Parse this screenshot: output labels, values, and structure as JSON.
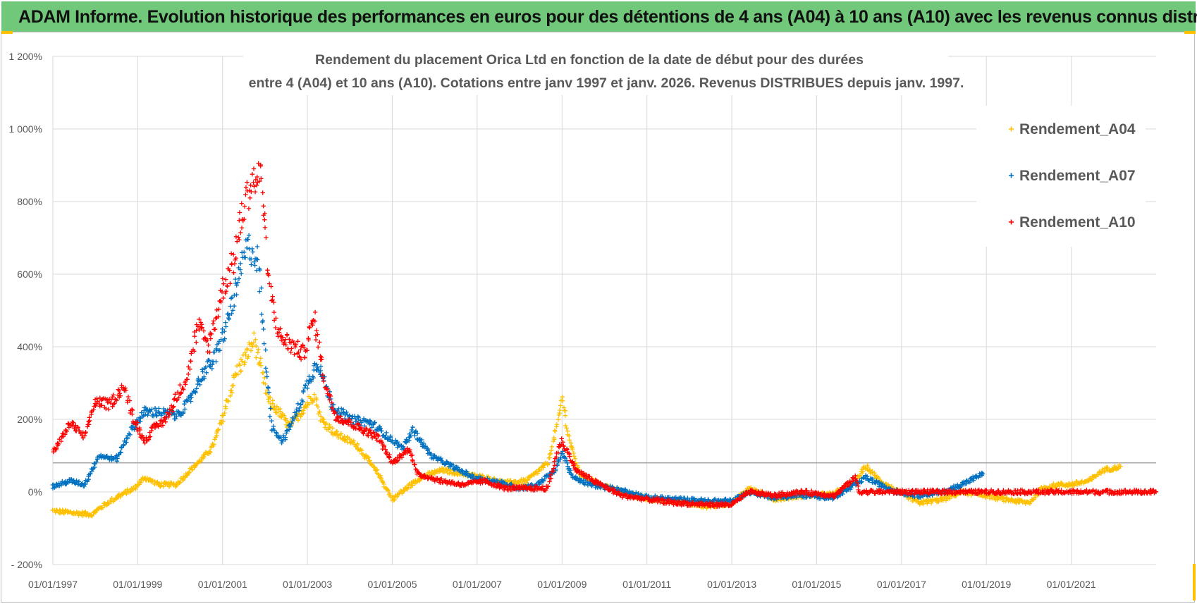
{
  "banner": {
    "title": "ADAM Informe. Evolution historique des performances en euros pour des détentions de 4 ans (A04) à 10 ans (A10) avec les revenus connus distribués"
  },
  "chart_data": {
    "type": "scatter",
    "title": "Rendement du placement Orica Ltd en fonction de la date de début pour des durées",
    "subtitle": "entre 4 (A04) et 10 ans (A10). Cotations entre janv 1997 et janv. 2026. Revenus DISTRIBUES depuis janv. 1997.",
    "xlabel": "",
    "ylabel": "",
    "x_range": [
      "1997-01-01",
      "2023-01-01"
    ],
    "ylim": [
      -200,
      1200
    ],
    "y_ticks": [
      -200,
      0,
      200,
      400,
      600,
      800,
      1000,
      1200
    ],
    "y_tick_labels": [
      "- 200%",
      "0%",
      "200%",
      "400%",
      "600%",
      "800%",
      "1 000%",
      "1 200%"
    ],
    "x_tick_labels": [
      "01/01/1997",
      "01/01/1999",
      "01/01/2001",
      "01/01/2003",
      "01/01/2005",
      "01/01/2007",
      "01/01/2009",
      "01/01/2011",
      "01/01/2013",
      "01/01/2015",
      "01/01/2017",
      "01/01/2019",
      "01/01/2021"
    ],
    "grid": true,
    "reference_line_y": 80,
    "legend_position": "top-right",
    "marker": "+",
    "series": [
      {
        "name": "Rendement_A04",
        "color": "#ffc000",
        "points": [
          [
            "1997-01-01",
            -52
          ],
          [
            "1997-07-01",
            -58
          ],
          [
            "1997-12-01",
            -62
          ],
          [
            "1998-03-01",
            -40
          ],
          [
            "1998-07-01",
            -15
          ],
          [
            "1998-12-01",
            10
          ],
          [
            "1999-03-01",
            40
          ],
          [
            "1999-07-01",
            20
          ],
          [
            "1999-12-01",
            20
          ],
          [
            "2000-03-01",
            50
          ],
          [
            "2000-07-01",
            90
          ],
          [
            "2000-10-01",
            120
          ],
          [
            "2001-01-01",
            200
          ],
          [
            "2001-03-01",
            270
          ],
          [
            "2001-05-01",
            330
          ],
          [
            "2001-08-01",
            380
          ],
          [
            "2001-10-01",
            420
          ],
          [
            "2001-12-01",
            330
          ],
          [
            "2002-02-01",
            250
          ],
          [
            "2002-05-01",
            220
          ],
          [
            "2002-08-01",
            180
          ],
          [
            "2002-12-01",
            230
          ],
          [
            "2003-03-01",
            270
          ],
          [
            "2003-05-01",
            200
          ],
          [
            "2003-09-01",
            160
          ],
          [
            "2004-03-01",
            130
          ],
          [
            "2004-09-01",
            50
          ],
          [
            "2005-01-01",
            -20
          ],
          [
            "2005-05-01",
            10
          ],
          [
            "2005-09-01",
            40
          ],
          [
            "2006-03-01",
            60
          ],
          [
            "2006-09-01",
            50
          ],
          [
            "2007-03-01",
            40
          ],
          [
            "2007-09-01",
            25
          ],
          [
            "2008-03-01",
            30
          ],
          [
            "2008-09-01",
            80
          ],
          [
            "2008-12-01",
            200
          ],
          [
            "2009-01-01",
            260
          ],
          [
            "2009-03-01",
            150
          ],
          [
            "2009-06-01",
            50
          ],
          [
            "2009-12-01",
            20
          ],
          [
            "2010-06-01",
            0
          ],
          [
            "2011-01-01",
            -20
          ],
          [
            "2011-09-01",
            -25
          ],
          [
            "2012-06-01",
            -40
          ],
          [
            "2013-01-01",
            -30
          ],
          [
            "2013-06-01",
            10
          ],
          [
            "2014-01-01",
            -20
          ],
          [
            "2014-09-01",
            -10
          ],
          [
            "2015-06-01",
            -5
          ],
          [
            "2015-12-01",
            30
          ],
          [
            "2016-03-01",
            70
          ],
          [
            "2016-07-01",
            30
          ],
          [
            "2016-12-01",
            0
          ],
          [
            "2017-06-01",
            -30
          ],
          [
            "2018-01-01",
            -20
          ],
          [
            "2018-06-01",
            0
          ],
          [
            "2019-01-01",
            -10
          ],
          [
            "2019-06-01",
            -20
          ],
          [
            "2020-01-01",
            -30
          ],
          [
            "2020-05-01",
            10
          ],
          [
            "2020-09-01",
            20
          ],
          [
            "2021-01-01",
            20
          ],
          [
            "2021-06-01",
            30
          ],
          [
            "2021-10-01",
            60
          ],
          [
            "2022-03-01",
            70
          ]
        ]
      },
      {
        "name": "Rendement_A07",
        "color": "#0070c0",
        "points": [
          [
            "1997-01-01",
            15
          ],
          [
            "1997-06-01",
            30
          ],
          [
            "1997-10-01",
            20
          ],
          [
            "1998-02-01",
            100
          ],
          [
            "1998-07-01",
            90
          ],
          [
            "1998-11-01",
            170
          ],
          [
            "1999-03-01",
            220
          ],
          [
            "1999-07-01",
            220
          ],
          [
            "1999-12-01",
            210
          ],
          [
            "2000-03-01",
            240
          ],
          [
            "2000-07-01",
            320
          ],
          [
            "2000-11-01",
            370
          ],
          [
            "2001-02-01",
            460
          ],
          [
            "2001-05-01",
            560
          ],
          [
            "2001-08-01",
            680
          ],
          [
            "2001-11-01",
            640
          ],
          [
            "2002-01-01",
            380
          ],
          [
            "2002-03-01",
            180
          ],
          [
            "2002-06-01",
            140
          ],
          [
            "2002-10-01",
            220
          ],
          [
            "2003-01-01",
            300
          ],
          [
            "2003-04-01",
            360
          ],
          [
            "2003-08-01",
            240
          ],
          [
            "2004-01-01",
            200
          ],
          [
            "2004-07-01",
            190
          ],
          [
            "2004-12-01",
            150
          ],
          [
            "2005-04-01",
            120
          ],
          [
            "2005-07-01",
            170
          ],
          [
            "2005-12-01",
            100
          ],
          [
            "2006-06-01",
            70
          ],
          [
            "2006-12-01",
            40
          ],
          [
            "2007-06-01",
            30
          ],
          [
            "2008-01-01",
            10
          ],
          [
            "2008-06-01",
            20
          ],
          [
            "2008-11-01",
            60
          ],
          [
            "2009-01-01",
            110
          ],
          [
            "2009-04-01",
            40
          ],
          [
            "2009-09-01",
            20
          ],
          [
            "2010-06-01",
            5
          ],
          [
            "2011-01-01",
            -15
          ],
          [
            "2011-09-01",
            -20
          ],
          [
            "2012-06-01",
            -25
          ],
          [
            "2013-01-01",
            -25
          ],
          [
            "2013-06-01",
            0
          ],
          [
            "2014-01-01",
            -15
          ],
          [
            "2014-09-01",
            -10
          ],
          [
            "2015-06-01",
            -15
          ],
          [
            "2015-12-01",
            20
          ],
          [
            "2016-03-01",
            40
          ],
          [
            "2016-07-01",
            20
          ],
          [
            "2016-12-01",
            0
          ],
          [
            "2017-06-01",
            -10
          ],
          [
            "2018-01-01",
            0
          ],
          [
            "2018-06-01",
            20
          ],
          [
            "2018-10-01",
            40
          ],
          [
            "2018-12-01",
            50
          ]
        ]
      },
      {
        "name": "Rendement_A10",
        "color": "#ff0000",
        "points": [
          [
            "1997-01-01",
            110
          ],
          [
            "1997-03-01",
            140
          ],
          [
            "1997-06-01",
            190
          ],
          [
            "1997-10-01",
            150
          ],
          [
            "1998-01-01",
            250
          ],
          [
            "1998-05-01",
            240
          ],
          [
            "1998-09-01",
            290
          ],
          [
            "1998-12-01",
            200
          ],
          [
            "1999-03-01",
            140
          ],
          [
            "1999-06-01",
            180
          ],
          [
            "1999-09-01",
            200
          ],
          [
            "1999-12-01",
            260
          ],
          [
            "2000-03-01",
            320
          ],
          [
            "2000-06-01",
            460
          ],
          [
            "2000-09-01",
            400
          ],
          [
            "2001-01-01",
            560
          ],
          [
            "2001-04-01",
            630
          ],
          [
            "2001-07-01",
            780
          ],
          [
            "2001-09-01",
            850
          ],
          [
            "2001-12-01",
            870
          ],
          [
            "2002-02-01",
            580
          ],
          [
            "2002-05-01",
            430
          ],
          [
            "2002-09-01",
            400
          ],
          [
            "2002-12-01",
            380
          ],
          [
            "2003-03-01",
            480
          ],
          [
            "2003-06-01",
            300
          ],
          [
            "2003-09-01",
            210
          ],
          [
            "2004-03-01",
            180
          ],
          [
            "2004-09-01",
            150
          ],
          [
            "2005-01-01",
            80
          ],
          [
            "2005-06-01",
            120
          ],
          [
            "2005-08-01",
            50
          ],
          [
            "2006-03-01",
            30
          ],
          [
            "2006-09-01",
            20
          ],
          [
            "2007-03-01",
            30
          ],
          [
            "2007-09-01",
            10
          ],
          [
            "2008-03-01",
            10
          ],
          [
            "2008-09-01",
            10
          ],
          [
            "2008-12-01",
            120
          ],
          [
            "2009-01-01",
            140
          ],
          [
            "2009-05-01",
            60
          ],
          [
            "2009-10-01",
            30
          ],
          [
            "2010-06-01",
            -10
          ],
          [
            "2011-01-01",
            -20
          ],
          [
            "2011-09-01",
            -30
          ],
          [
            "2012-06-01",
            -35
          ],
          [
            "2013-01-01",
            -35
          ],
          [
            "2013-06-01",
            0
          ],
          [
            "2014-01-01",
            -10
          ],
          [
            "2014-09-01",
            0
          ],
          [
            "2015-06-01",
            -10
          ],
          [
            "2015-12-01",
            40
          ],
          [
            "2016-01-01",
            0
          ],
          [
            "2017-01-01",
            0
          ],
          [
            "2018-01-01",
            0
          ],
          [
            "2019-01-01",
            0
          ],
          [
            "2020-01-01",
            0
          ],
          [
            "2021-01-01",
            0
          ],
          [
            "2022-01-01",
            0
          ],
          [
            "2023-01-01",
            0
          ]
        ]
      }
    ]
  }
}
